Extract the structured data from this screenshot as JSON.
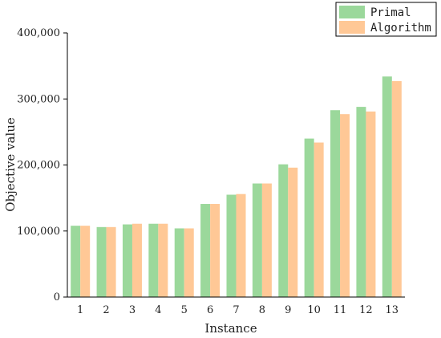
{
  "chart_data": {
    "type": "bar",
    "title": "",
    "xlabel": "Instance",
    "ylabel": "Objective value",
    "categories": [
      "1",
      "2",
      "3",
      "4",
      "5",
      "6",
      "7",
      "8",
      "9",
      "10",
      "11",
      "12",
      "13"
    ],
    "series": [
      {
        "name": "Primal",
        "color": "#9bd89b",
        "values": [
          108000,
          106000,
          110000,
          111000,
          104000,
          141000,
          155000,
          172000,
          201000,
          240000,
          283000,
          288000,
          334000
        ]
      },
      {
        "name": "Algorithm",
        "color": "#ffc896",
        "values": [
          108000,
          106000,
          111000,
          111000,
          104000,
          141000,
          156000,
          172000,
          196000,
          234000,
          277000,
          281000,
          327000
        ]
      }
    ],
    "ylim": [
      0,
      400000
    ],
    "yticks": [
      0,
      100000,
      200000,
      300000,
      400000
    ],
    "ytick_labels": [
      "0",
      "100,000",
      "200,000",
      "300,000",
      "400,000"
    ],
    "grid": false,
    "legend_position": "top-right"
  }
}
